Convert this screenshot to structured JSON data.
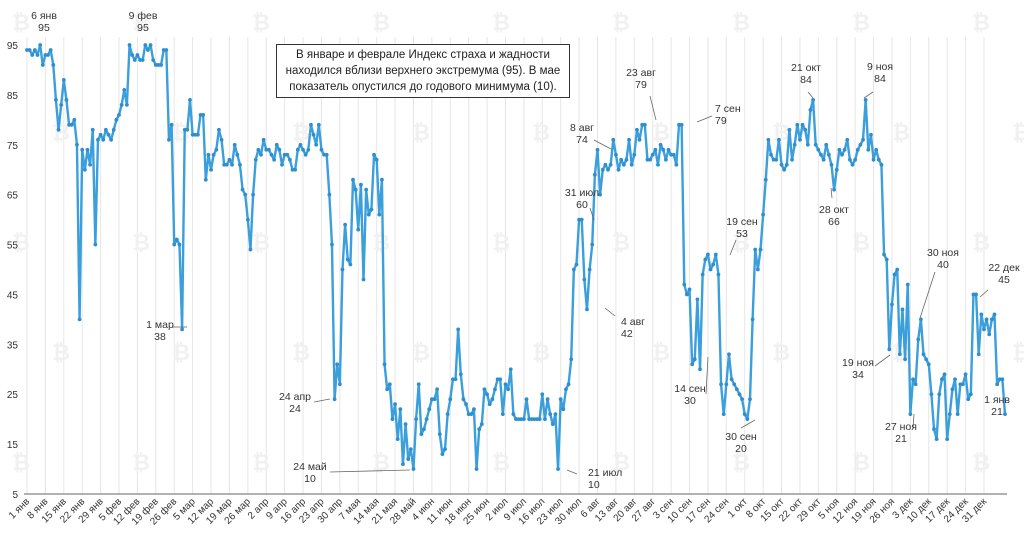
{
  "chart_data": {
    "type": "line",
    "title": "",
    "xlabel": "",
    "ylabel": "",
    "ylim": [
      5,
      95
    ],
    "yticks": [
      5,
      15,
      25,
      35,
      45,
      55,
      65,
      75,
      85,
      95
    ],
    "grid": "vertical",
    "line_color": "#3a9fdb",
    "x_tick_labels": [
      "1 янв",
      "8 янв",
      "15 янв",
      "22 янв",
      "29 янв",
      "5 фев",
      "12 фев",
      "19 фев",
      "26 фев",
      "5 мар",
      "12 мар",
      "19 мар",
      "26 мар",
      "2 апр",
      "9 апр",
      "16 апр",
      "23 апр",
      "30 апр",
      "7 мая",
      "14 мая",
      "21 мая",
      "28 май",
      "4 июн",
      "11 июн",
      "18 июн",
      "25 июн",
      "2 июл",
      "9 июл",
      "16 июл",
      "23 июл",
      "30 июл",
      "6 авг",
      "13 авг",
      "20 авг",
      "27 авг",
      "3 сен",
      "10 сен",
      "17 сен",
      "24 сен",
      "1 окт",
      "8 окт",
      "15 окт",
      "22 окт",
      "29 окт",
      "5 ноя",
      "12 ноя",
      "19 ноя",
      "26 ноя",
      "3 дек",
      "10 дек",
      "17 дек",
      "24 дек",
      "31 дек"
    ],
    "series": [
      {
        "name": "Индекс страха и жадности",
        "values": [
          94,
          94,
          93,
          94,
          93,
          95,
          91,
          93,
          93,
          94,
          91,
          84,
          78,
          83,
          88,
          84,
          79,
          79,
          80,
          75,
          40,
          74,
          70,
          74,
          71,
          78,
          55,
          76,
          77,
          76,
          78,
          77,
          76,
          78,
          80,
          81,
          83,
          86,
          83,
          95,
          93,
          92,
          93,
          92,
          92,
          95,
          94,
          95,
          92,
          91,
          91,
          91,
          94,
          94,
          76,
          79,
          55,
          56,
          55,
          38,
          78,
          78,
          84,
          77,
          77,
          77,
          81,
          81,
          68,
          73,
          70,
          73,
          74,
          78,
          76,
          71,
          71,
          72,
          71,
          75,
          73,
          71,
          66,
          65,
          60,
          54,
          65,
          72,
          74,
          73,
          76,
          74,
          74,
          73,
          72,
          75,
          74,
          71,
          73,
          73,
          72,
          70,
          70,
          74,
          75,
          74,
          73,
          74,
          79,
          77,
          75,
          79,
          74,
          73,
          73,
          65,
          55,
          24,
          31,
          27,
          50,
          59,
          52,
          51,
          68,
          66,
          58,
          67,
          48,
          66,
          61,
          62,
          73,
          72,
          61,
          68,
          31,
          26,
          27,
          20,
          23,
          16,
          22,
          11,
          19,
          12,
          14,
          10,
          20,
          27,
          17,
          18,
          20,
          22,
          24,
          24,
          26,
          17,
          13,
          14,
          21,
          24,
          28,
          28,
          38,
          29,
          24,
          23,
          21,
          21,
          22,
          10,
          18,
          19,
          26,
          25,
          23,
          24,
          26,
          28,
          28,
          21,
          27,
          26,
          30,
          21,
          20,
          20,
          20,
          20,
          24,
          20,
          20,
          20,
          20,
          20,
          25,
          20,
          24,
          21,
          19,
          21,
          10,
          24,
          22,
          26,
          27,
          32,
          50,
          51,
          60,
          60,
          48,
          42,
          50,
          55,
          69,
          74,
          65,
          70,
          71,
          70,
          71,
          76,
          73,
          70,
          72,
          71,
          72,
          76,
          71,
          73,
          78,
          76,
          79,
          79,
          72,
          72,
          73,
          74,
          71,
          75,
          74,
          72,
          74,
          73,
          73,
          71,
          79,
          79,
          47,
          45,
          46,
          31,
          32,
          44,
          30,
          49,
          52,
          53,
          50,
          51,
          53,
          49,
          27,
          21,
          27,
          33,
          28,
          27,
          26,
          25,
          24,
          21,
          20,
          24,
          40,
          54,
          50,
          54,
          61,
          68,
          76,
          73,
          72,
          72,
          76,
          71,
          70,
          71,
          78,
          72,
          75,
          79,
          76,
          79,
          78,
          75,
          82,
          84,
          75,
          74,
          73,
          72,
          75,
          73,
          71,
          66,
          70,
          74,
          73,
          74,
          76,
          72,
          71,
          72,
          74,
          75,
          76,
          84,
          74,
          77,
          72,
          74,
          72,
          71,
          53,
          52,
          34,
          43,
          49,
          50,
          33,
          42,
          32,
          47,
          21,
          28,
          27,
          36,
          40,
          33,
          32,
          31,
          25,
          18,
          16,
          25,
          28,
          29,
          16,
          21,
          26,
          28,
          21,
          27,
          27,
          29,
          24,
          25,
          45,
          45,
          33,
          41,
          38,
          40,
          37,
          40,
          41,
          27,
          28,
          28,
          21
        ]
      }
    ],
    "annotations": [
      {
        "date": "6 янв",
        "value": "95"
      },
      {
        "date": "9 фев",
        "value": "95"
      },
      {
        "date": "1 мар",
        "value": "38"
      },
      {
        "date": "24 апр",
        "value": "24"
      },
      {
        "date": "24 май",
        "value": "10"
      },
      {
        "date": "21 июл",
        "value": "10"
      },
      {
        "date": "31 июл",
        "value": "60"
      },
      {
        "date": "4 авг",
        "value": "42"
      },
      {
        "date": "8 авг",
        "value": "74"
      },
      {
        "date": "23 авг",
        "value": "79"
      },
      {
        "date": "7 сен",
        "value": "79"
      },
      {
        "date": "14 сен",
        "value": "30"
      },
      {
        "date": "19 сен",
        "value": "53"
      },
      {
        "date": "30 сен",
        "value": "20"
      },
      {
        "date": "21 окт",
        "value": "84"
      },
      {
        "date": "28 окт",
        "value": "66"
      },
      {
        "date": "9 ноя",
        "value": "84"
      },
      {
        "date": "19 ноя",
        "value": "34"
      },
      {
        "date": "27 ноя",
        "value": "21"
      },
      {
        "date": "30 ноя",
        "value": "40"
      },
      {
        "date": "22 дек",
        "value": "45"
      },
      {
        "date": "1 янв",
        "value": "21"
      }
    ],
    "callout": "В январе и феврале Индекс страха и жадности находился вблизи верхнего экстремума (95). В мае показатель опустился до годового минимума (10)."
  }
}
